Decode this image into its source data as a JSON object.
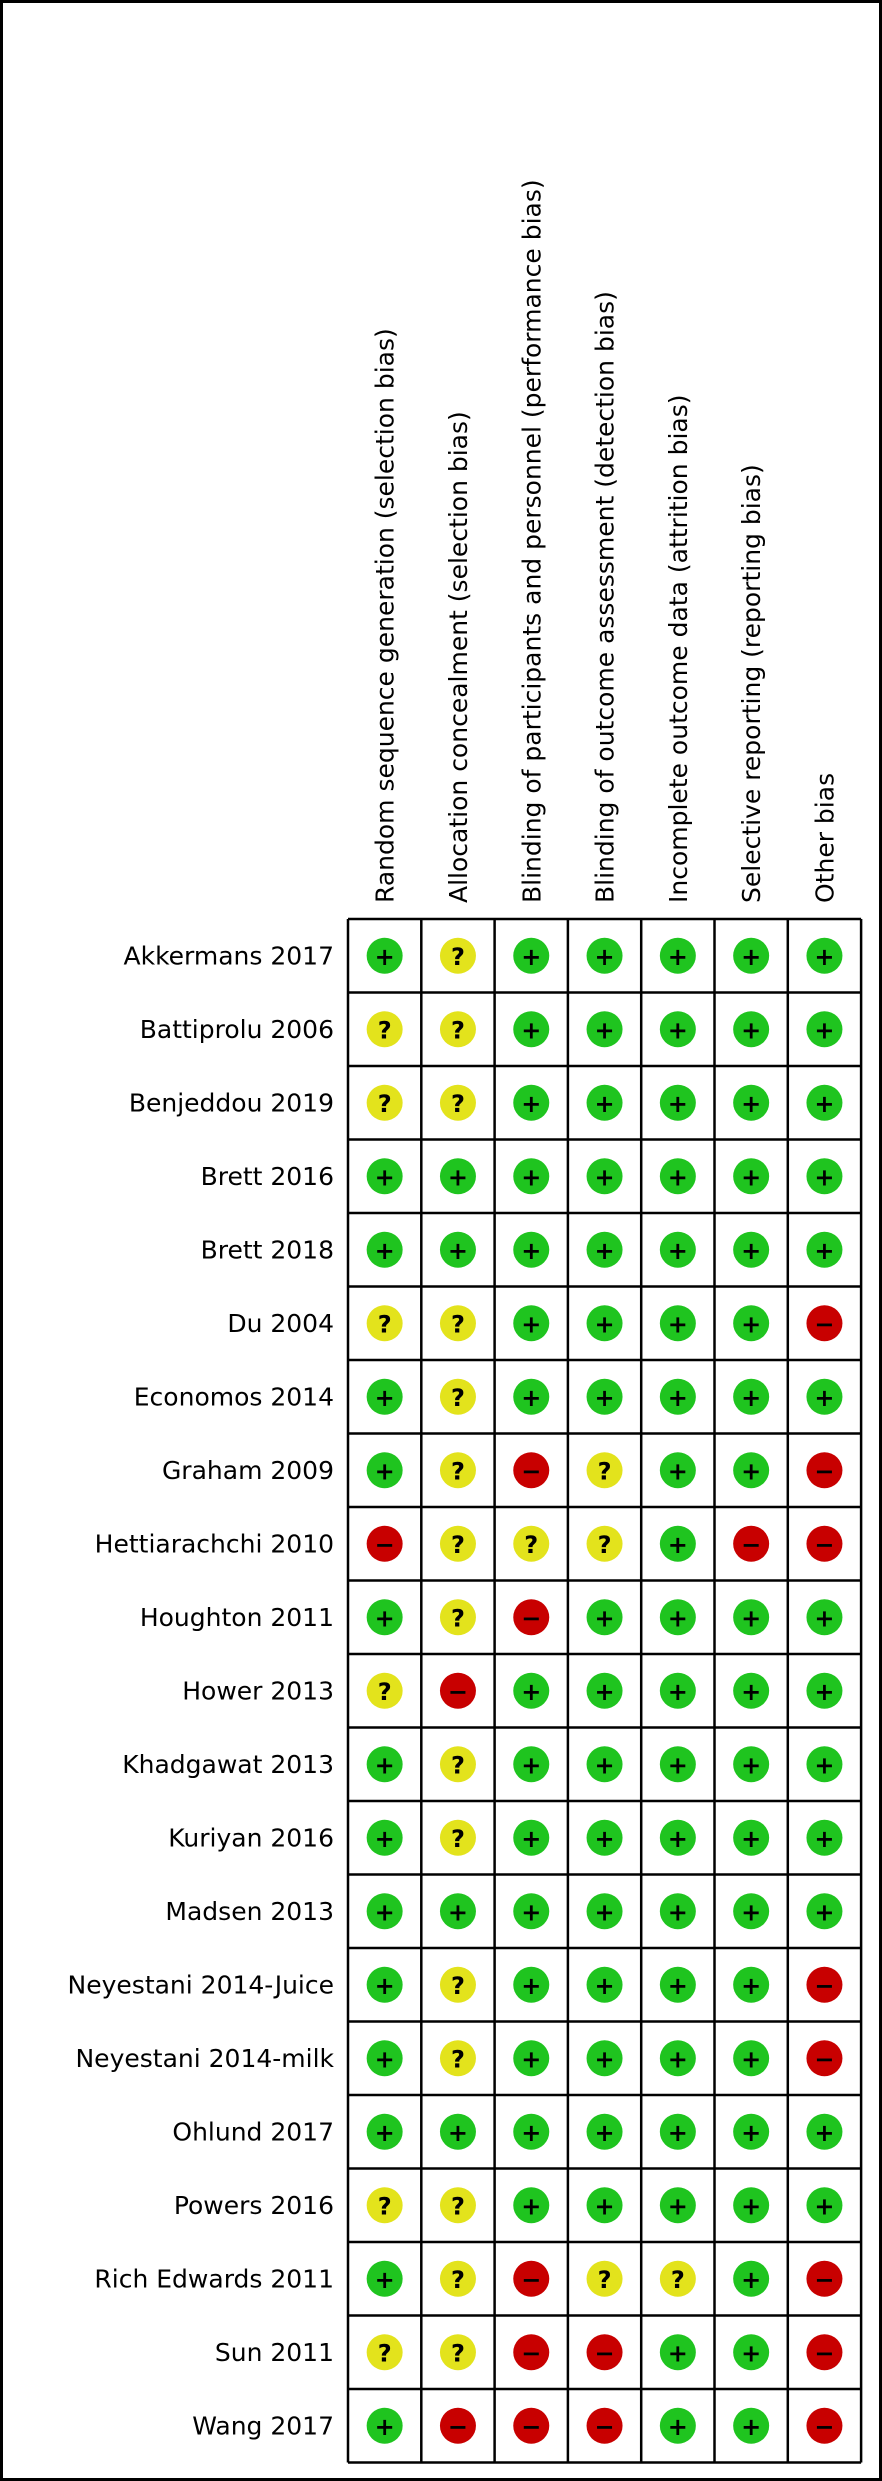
{
  "domains": [
    "Random sequence generation (selection bias)",
    "Allocation concealment (selection bias)",
    "Blinding of participants and personnel (performance bias)",
    "Blinding of outcome assessment (detection bias)",
    "Incomplete outcome data (attrition bias)",
    "Selective reporting (reporting bias)",
    "Other bias"
  ],
  "levels": [
    {
      "symbol": "+",
      "color": "#1fc41f"
    },
    {
      "symbol": "?",
      "color": "#e3e31c"
    },
    {
      "symbol": "−",
      "color": "#c80000"
    }
  ],
  "rows": [
    {
      "study": "Akkermans 2017",
      "judgments": [
        "+",
        "?",
        "+",
        "+",
        "+",
        "+",
        "+"
      ]
    },
    {
      "study": "Battiprolu 2006",
      "judgments": [
        "?",
        "?",
        "+",
        "+",
        "+",
        "+",
        "+"
      ]
    },
    {
      "study": "Benjeddou 2019",
      "judgments": [
        "?",
        "?",
        "+",
        "+",
        "+",
        "+",
        "+"
      ]
    },
    {
      "study": "Brett 2016",
      "judgments": [
        "+",
        "+",
        "+",
        "+",
        "+",
        "+",
        "+"
      ]
    },
    {
      "study": "Brett 2018",
      "judgments": [
        "+",
        "+",
        "+",
        "+",
        "+",
        "+",
        "+"
      ]
    },
    {
      "study": "Du 2004",
      "judgments": [
        "?",
        "?",
        "+",
        "+",
        "+",
        "+",
        "−"
      ]
    },
    {
      "study": "Economos 2014",
      "judgments": [
        "+",
        "?",
        "+",
        "+",
        "+",
        "+",
        "+"
      ]
    },
    {
      "study": "Graham 2009",
      "judgments": [
        "+",
        "?",
        "−",
        "?",
        "+",
        "+",
        "−"
      ]
    },
    {
      "study": "Hettiarachchi 2010",
      "judgments": [
        "−",
        "?",
        "?",
        "?",
        "+",
        "−",
        "−"
      ]
    },
    {
      "study": "Houghton 2011",
      "judgments": [
        "+",
        "?",
        "−",
        "+",
        "+",
        "+",
        "+"
      ]
    },
    {
      "study": "Hower 2013",
      "judgments": [
        "?",
        "−",
        "+",
        "+",
        "+",
        "+",
        "+"
      ]
    },
    {
      "study": "Khadgawat 2013",
      "judgments": [
        "+",
        "?",
        "+",
        "+",
        "+",
        "+",
        "+"
      ]
    },
    {
      "study": "Kuriyan 2016",
      "judgments": [
        "+",
        "?",
        "+",
        "+",
        "+",
        "+",
        "+"
      ]
    },
    {
      "study": "Madsen 2013",
      "judgments": [
        "+",
        "+",
        "+",
        "+",
        "+",
        "+",
        "+"
      ]
    },
    {
      "study": "Neyestani 2014-Juice",
      "judgments": [
        "+",
        "?",
        "+",
        "+",
        "+",
        "+",
        "−"
      ]
    },
    {
      "study": "Neyestani 2014-milk",
      "judgments": [
        "+",
        "?",
        "+",
        "+",
        "+",
        "+",
        "−"
      ]
    },
    {
      "study": "Ohlund 2017",
      "judgments": [
        "+",
        "+",
        "+",
        "+",
        "+",
        "+",
        "+"
      ]
    },
    {
      "study": "Powers 2016",
      "judgments": [
        "?",
        "?",
        "+",
        "+",
        "+",
        "+",
        "+"
      ]
    },
    {
      "study": "Rich Edwards 2011",
      "judgments": [
        "+",
        "?",
        "−",
        "?",
        "?",
        "+",
        "−"
      ]
    },
    {
      "study": "Sun 2011",
      "judgments": [
        "?",
        "?",
        "−",
        "−",
        "+",
        "+",
        "−"
      ]
    },
    {
      "study": "Wang 2017",
      "judgments": [
        "+",
        "−",
        "−",
        "−",
        "+",
        "+",
        "−"
      ]
    }
  ]
}
